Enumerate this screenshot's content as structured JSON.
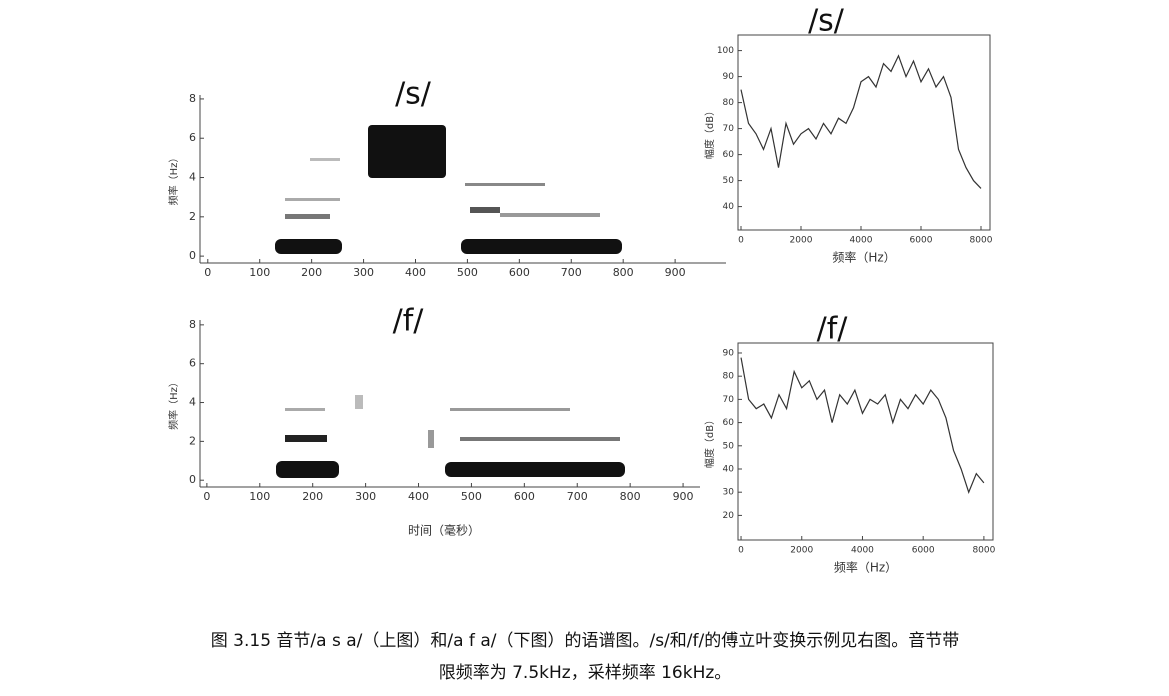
{
  "figure": {
    "panels": [
      {
        "type": "spectrogram",
        "title": "/s/",
        "ylabel": "频率（Hz）",
        "xlim": [
          -15,
          998
        ],
        "xticks": [
          0,
          100,
          200,
          300,
          400,
          500,
          600,
          700,
          800,
          900
        ],
        "ylim": [
          -0.35,
          8.2
        ],
        "yticks": [
          0,
          2,
          4,
          6,
          8
        ]
      },
      {
        "type": "line",
        "title": "/s/",
        "xlabel": "频率（Hz）",
        "ylabel": "幅度（dB）",
        "xlim": [
          -100,
          8300
        ],
        "xticks": [
          0,
          2000,
          4000,
          6000,
          8000
        ],
        "ylim": [
          31,
          106
        ],
        "yticks": [
          40,
          50,
          60,
          70,
          80,
          90,
          100
        ],
        "x": [
          0,
          250,
          500,
          750,
          1000,
          1250,
          1500,
          1750,
          2000,
          2250,
          2500,
          2750,
          3000,
          3250,
          3500,
          3750,
          4000,
          4250,
          4500,
          4750,
          5000,
          5250,
          5500,
          5750,
          6000,
          6250,
          6500,
          6750,
          7000,
          7250,
          7500,
          7750,
          8000
        ],
        "values": [
          85,
          72,
          68,
          62,
          70,
          55,
          72,
          64,
          68,
          70,
          66,
          72,
          68,
          74,
          72,
          78,
          88,
          90,
          86,
          95,
          92,
          98,
          90,
          96,
          88,
          93,
          86,
          90,
          82,
          62,
          55,
          50,
          47
        ]
      },
      {
        "type": "spectrogram",
        "title": "/f/",
        "xlabel": "时间（毫秒）",
        "ylabel": "频率（Hz）",
        "xlim": [
          -13,
          932
        ],
        "xticks": [
          0,
          100,
          200,
          300,
          400,
          500,
          600,
          700,
          800,
          900
        ],
        "ylim": [
          -0.35,
          8.25
        ],
        "yticks": [
          0,
          2,
          4,
          6,
          8
        ]
      },
      {
        "type": "line",
        "title": "/f/",
        "xlabel": "频率（Hz）",
        "ylabel": "幅度（dB）",
        "xlim": [
          -100,
          8300
        ],
        "xticks": [
          0,
          2000,
          4000,
          6000,
          8000
        ],
        "ylim": [
          9.4,
          94.3
        ],
        "yticks": [
          20,
          30,
          40,
          50,
          60,
          70,
          80,
          90
        ],
        "x": [
          0,
          250,
          500,
          750,
          1000,
          1250,
          1500,
          1750,
          2000,
          2250,
          2500,
          2750,
          3000,
          3250,
          3500,
          3750,
          4000,
          4250,
          4500,
          4750,
          5000,
          5250,
          5500,
          5750,
          6000,
          6250,
          6500,
          6750,
          7000,
          7250,
          7500,
          7750,
          8000
        ],
        "values": [
          88,
          70,
          66,
          68,
          62,
          72,
          66,
          82,
          75,
          78,
          70,
          74,
          60,
          72,
          68,
          74,
          64,
          70,
          68,
          72,
          60,
          70,
          66,
          72,
          68,
          74,
          70,
          62,
          48,
          40,
          30,
          38,
          34
        ]
      }
    ],
    "caption": [
      "图 3.15 音节/a s a/（上图）和/a f a/（下图）的语谱图。/s/和/f/的傅立叶变换示例见右图。音节带",
      "限频率为 7.5kHz，采样频率 16kHz。"
    ]
  }
}
